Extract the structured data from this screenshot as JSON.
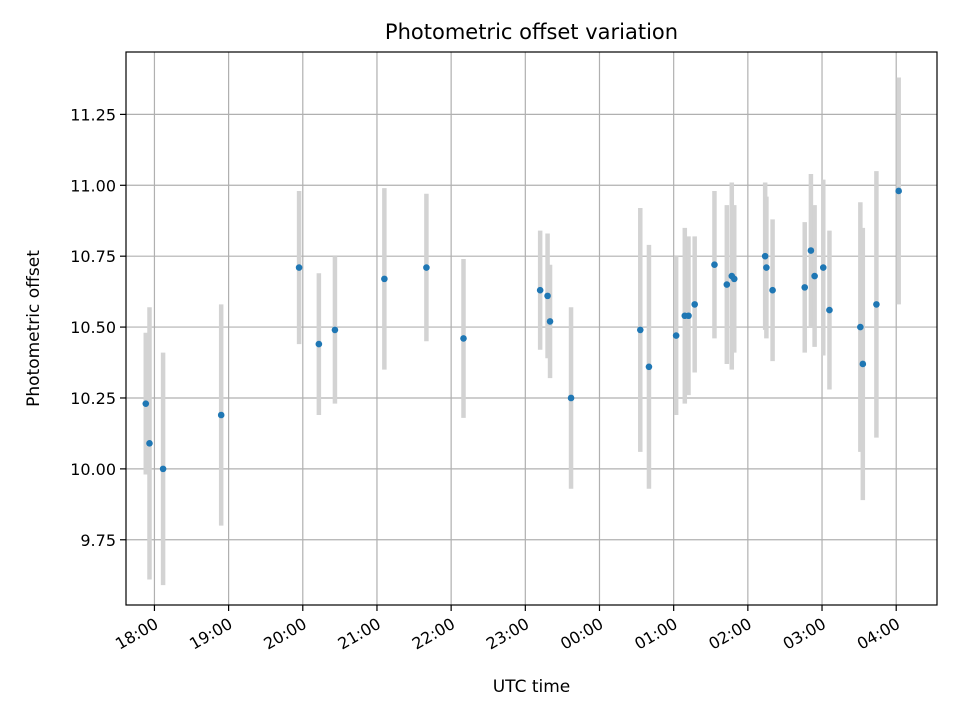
{
  "chart_data": {
    "type": "scatter",
    "title": "Photometric offset variation",
    "xlabel": "UTC time",
    "ylabel": "Photometric offset",
    "grid": true,
    "x_is_time": true,
    "x_range": [
      "17:37",
      "04:33"
    ],
    "ylim": [
      9.52,
      11.47
    ],
    "x_ticks": [
      {
        "label": "18:00",
        "time": "18:00"
      },
      {
        "label": "19:00",
        "time": "19:00"
      },
      {
        "label": "20:00",
        "time": "20:00"
      },
      {
        "label": "21:00",
        "time": "21:00"
      },
      {
        "label": "22:00",
        "time": "22:00"
      },
      {
        "label": "23:00",
        "time": "23:00"
      },
      {
        "label": "00:00",
        "time": "00:00"
      },
      {
        "label": "01:00",
        "time": "01:00"
      },
      {
        "label": "02:00",
        "time": "02:00"
      },
      {
        "label": "03:00",
        "time": "03:00"
      },
      {
        "label": "04:00",
        "time": "04:00"
      }
    ],
    "y_ticks": [
      9.75,
      10.0,
      10.25,
      10.5,
      10.75,
      11.0,
      11.25
    ],
    "y_tick_labels": [
      "9.75",
      "10.00",
      "10.25",
      "10.50",
      "10.75",
      "11.00",
      "11.25"
    ],
    "point_color": "#1f77b4",
    "errorbar_color": "#d3d3d3",
    "points": [
      {
        "time": "17:53",
        "y": 10.23,
        "err": 0.25
      },
      {
        "time": "17:56",
        "y": 10.09,
        "err": 0.48
      },
      {
        "time": "18:07",
        "y": 10.0,
        "err": 0.41
      },
      {
        "time": "18:54",
        "y": 10.19,
        "err": 0.39
      },
      {
        "time": "19:57",
        "y": 10.71,
        "err": 0.27
      },
      {
        "time": "20:13",
        "y": 10.44,
        "err": 0.25
      },
      {
        "time": "20:26",
        "y": 10.49,
        "err": 0.26
      },
      {
        "time": "21:06",
        "y": 10.67,
        "err": 0.32
      },
      {
        "time": "21:40",
        "y": 10.71,
        "err": 0.26
      },
      {
        "time": "22:10",
        "y": 10.46,
        "err": 0.28
      },
      {
        "time": "23:12",
        "y": 10.63,
        "err": 0.21
      },
      {
        "time": "23:18",
        "y": 10.61,
        "err": 0.22
      },
      {
        "time": "23:20",
        "y": 10.52,
        "err": 0.2
      },
      {
        "time": "23:37",
        "y": 10.25,
        "err": 0.32
      },
      {
        "time": "00:33",
        "y": 10.49,
        "err": 0.43
      },
      {
        "time": "00:40",
        "y": 10.36,
        "err": 0.43
      },
      {
        "time": "01:02",
        "y": 10.47,
        "err": 0.28
      },
      {
        "time": "01:09",
        "y": 10.54,
        "err": 0.31
      },
      {
        "time": "01:12",
        "y": 10.54,
        "err": 0.28
      },
      {
        "time": "01:17",
        "y": 10.58,
        "err": 0.24
      },
      {
        "time": "01:33",
        "y": 10.72,
        "err": 0.26
      },
      {
        "time": "01:43",
        "y": 10.65,
        "err": 0.28
      },
      {
        "time": "01:47",
        "y": 10.68,
        "err": 0.33
      },
      {
        "time": "01:49",
        "y": 10.67,
        "err": 0.26
      },
      {
        "time": "02:14",
        "y": 10.75,
        "err": 0.26
      },
      {
        "time": "02:15",
        "y": 10.71,
        "err": 0.25
      },
      {
        "time": "02:20",
        "y": 10.63,
        "err": 0.25
      },
      {
        "time": "02:46",
        "y": 10.64,
        "err": 0.23
      },
      {
        "time": "02:51",
        "y": 10.77,
        "err": 0.27
      },
      {
        "time": "02:54",
        "y": 10.68,
        "err": 0.25
      },
      {
        "time": "03:01",
        "y": 10.71,
        "err": 0.31
      },
      {
        "time": "03:06",
        "y": 10.56,
        "err": 0.28
      },
      {
        "time": "03:31",
        "y": 10.5,
        "err": 0.44
      },
      {
        "time": "03:33",
        "y": 10.37,
        "err": 0.48
      },
      {
        "time": "03:44",
        "y": 10.58,
        "err": 0.47
      },
      {
        "time": "04:02",
        "y": 10.98,
        "err": 0.4
      }
    ]
  }
}
